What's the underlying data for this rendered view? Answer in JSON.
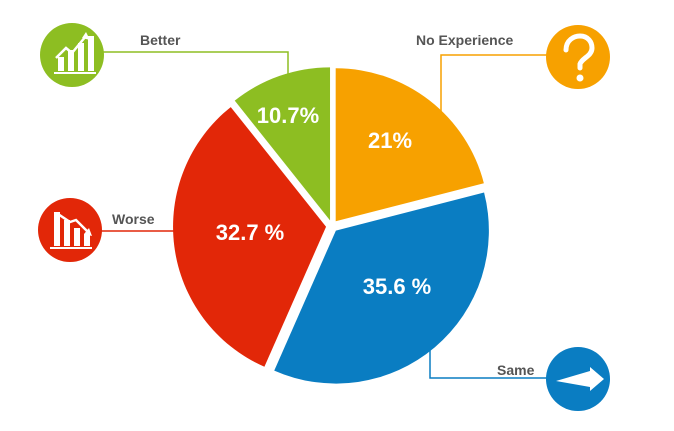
{
  "chart_data": {
    "type": "pie",
    "title": "",
    "slices": [
      {
        "name": "No Experience",
        "value": 21.0,
        "label": "21%",
        "color": "#F7A100",
        "icon": "question-mark-icon"
      },
      {
        "name": "Same",
        "value": 35.6,
        "label": "35.6 %",
        "color": "#0A7DC2",
        "icon": "right-arrow-icon"
      },
      {
        "name": "Worse",
        "value": 32.7,
        "label": "32.7 %",
        "color": "#E22708",
        "icon": "declining-bar-chart-icon"
      },
      {
        "name": "Better",
        "value": 10.7,
        "label": "10.7%",
        "color": "#8DBE22",
        "icon": "growing-bar-chart-icon"
      }
    ],
    "legend_placement": "callouts-around-pie"
  }
}
